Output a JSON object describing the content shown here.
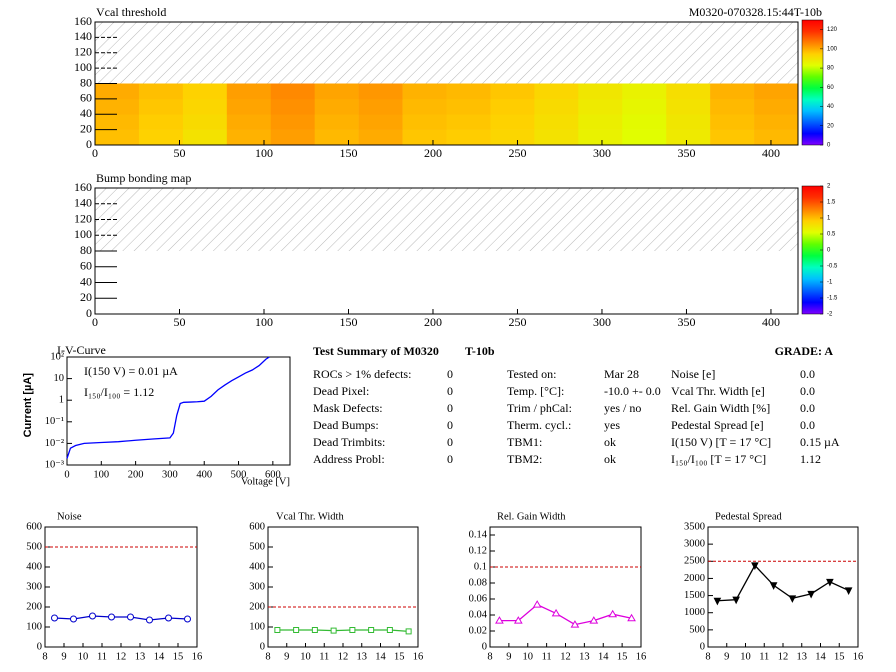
{
  "chart_data": [
    {
      "type": "heatmap",
      "title": "Vcal threshold",
      "subtitle": "M0320-070328.15:44T-10b",
      "x_bins": [
        0,
        26,
        52,
        78,
        104,
        130,
        156,
        182,
        208,
        234,
        260,
        286,
        312,
        338,
        364,
        390,
        416
      ],
      "y_bins": [
        0,
        20,
        40,
        60,
        80
      ],
      "z": [
        [
          97,
          94,
          90,
          99,
          102,
          98,
          100,
          96,
          95,
          93,
          90,
          86,
          83,
          88,
          96,
          98
        ],
        [
          98,
          95,
          92,
          100,
          103,
          99,
          101,
          97,
          96,
          94,
          91,
          87,
          84,
          89,
          97,
          99
        ],
        [
          99,
          96,
          93,
          101,
          104,
          100,
          102,
          98,
          97,
          95,
          92,
          88,
          85,
          90,
          98,
          100
        ],
        [
          100,
          97,
          94,
          102,
          105,
          101,
          103,
          99,
          98,
          96,
          93,
          89,
          86,
          91,
          99,
          101
        ]
      ],
      "xlim": [
        0,
        416
      ],
      "ylim": [
        0,
        160
      ],
      "xticks": [
        0,
        50,
        100,
        150,
        200,
        250,
        300,
        350,
        400
      ],
      "yticks": [
        0,
        20,
        40,
        60,
        80,
        100,
        120,
        140,
        160
      ],
      "zlim": [
        0,
        130
      ],
      "zticks": [
        0,
        20,
        40,
        60,
        80,
        100,
        120
      ],
      "colorscale": [
        "#8000ff",
        "#0000ff",
        "#0060ff",
        "#00c0ff",
        "#00ffc0",
        "#00ff40",
        "#60ff00",
        "#e0ff00",
        "#ffd000",
        "#ff8000",
        "#ff3000",
        "#ff0000"
      ]
    },
    {
      "type": "heatmap",
      "title": "Bump bonding map",
      "x_bins": [
        0,
        416
      ],
      "y_bins": [
        0,
        80
      ],
      "z": [
        [
          null
        ]
      ],
      "xlim": [
        0,
        416
      ],
      "ylim": [
        0,
        160
      ],
      "xticks": [
        0,
        50,
        100,
        150,
        200,
        250,
        300,
        350,
        400
      ],
      "yticks": [
        0,
        20,
        40,
        60,
        80,
        100,
        120,
        140,
        160
      ],
      "zlim": [
        -2,
        2
      ],
      "zticks": [
        -2,
        -1.5,
        -1,
        -0.5,
        0,
        0.5,
        1,
        1.5,
        2
      ],
      "colorscale": [
        "#8000ff",
        "#0000ff",
        "#0060ff",
        "#00c0ff",
        "#00ffc0",
        "#00ff40",
        "#60ff00",
        "#e0ff00",
        "#ffd000",
        "#ff8000",
        "#ff3000",
        "#ff0000"
      ]
    },
    {
      "type": "line",
      "title": "I-V-Curve",
      "x_label": "Voltage [V]",
      "y_label": "Current [µA]",
      "log_y": true,
      "x": [
        0,
        10,
        25,
        50,
        100,
        150,
        200,
        250,
        300,
        310,
        320,
        330,
        340,
        360,
        380,
        400,
        420,
        440,
        460,
        480,
        500,
        520,
        540,
        560,
        580,
        590
      ],
      "series": [
        {
          "color": "#0000ff",
          "values": [
            0.002,
            0.006,
            0.008,
            0.01,
            0.011,
            0.012,
            0.014,
            0.016,
            0.018,
            0.03,
            0.2,
            0.7,
            0.8,
            0.82,
            0.85,
            0.9,
            1.5,
            3,
            5,
            8,
            12,
            18,
            25,
            40,
            80,
            100
          ]
        }
      ],
      "xlim": [
        0,
        650
      ],
      "ylim": [
        0.001,
        100
      ],
      "xticks": [
        0,
        100,
        200,
        300,
        400,
        500,
        600
      ],
      "yticks": [
        {
          "value": 0.001,
          "label": "10⁻³"
        },
        {
          "value": 0.01,
          "label": "10⁻²"
        },
        {
          "value": 0.1,
          "label": "10⁻¹"
        },
        1,
        {
          "value": 10,
          "label": "10"
        },
        {
          "value": 100,
          "label": "10²"
        }
      ],
      "annotations": [
        "I(150 V) = 0.01 µA",
        "I₁₅₀/I₁₀₀ =  1.12"
      ]
    },
    {
      "type": "line",
      "title": "Noise",
      "marker": "circle",
      "x": [
        8.5,
        9.5,
        10.5,
        11.5,
        12.5,
        13.5,
        14.5,
        15.5
      ],
      "series": [
        {
          "color": "#0000cc",
          "values": [
            145,
            140,
            155,
            150,
            150,
            135,
            145,
            140
          ],
          "errors": [
            12,
            12,
            14,
            14,
            16,
            10,
            12,
            12
          ]
        }
      ],
      "xlim": [
        8,
        16
      ],
      "ylim": [
        0,
        600
      ],
      "xticks": [
        8,
        9,
        10,
        11,
        12,
        13,
        14,
        15,
        16
      ],
      "yticks": [
        0,
        100,
        200,
        300,
        400,
        500,
        600
      ],
      "limit": 500,
      "limit_color": "#cc0000"
    },
    {
      "type": "line",
      "title": "Vcal Thr. Width",
      "marker": "square",
      "x": [
        8.5,
        9.5,
        10.5,
        11.5,
        12.5,
        13.5,
        14.5,
        15.5
      ],
      "series": [
        {
          "color": "#33bb33",
          "values": [
            85,
            85,
            85,
            82,
            85,
            85,
            85,
            78
          ]
        }
      ],
      "xlim": [
        8,
        16
      ],
      "ylim": [
        0,
        600
      ],
      "xticks": [
        8,
        9,
        10,
        11,
        12,
        13,
        14,
        15,
        16
      ],
      "yticks": [
        0,
        100,
        200,
        300,
        400,
        500,
        600
      ],
      "limit": 200,
      "limit_color": "#cc0000"
    },
    {
      "type": "line",
      "title": "Rel. Gain Width",
      "marker": "triangle",
      "x": [
        8.5,
        9.5,
        10.5,
        11.5,
        12.5,
        13.5,
        14.5,
        15.5
      ],
      "series": [
        {
          "color": "#dd00dd",
          "values": [
            0.033,
            0.033,
            0.053,
            0.042,
            0.028,
            0.033,
            0.041,
            0.036
          ]
        }
      ],
      "xlim": [
        8,
        16
      ],
      "ylim": [
        0,
        0.15
      ],
      "xticks": [
        8,
        9,
        10,
        11,
        12,
        13,
        14,
        15,
        16
      ],
      "yticks": [
        0,
        0.02,
        0.04,
        0.06,
        0.08,
        0.1,
        0.12,
        0.14
      ],
      "limit": 0.1,
      "limit_color": "#cc0000"
    },
    {
      "type": "line",
      "title": "Pedestal Spread",
      "marker": "triangle-down",
      "x": [
        8.5,
        9.5,
        10.5,
        11.5,
        12.5,
        13.5,
        14.5,
        15.5
      ],
      "series": [
        {
          "color": "#000000",
          "values": [
            1350,
            1380,
            2380,
            1800,
            1420,
            1550,
            1900,
            1650
          ]
        }
      ],
      "xlim": [
        8,
        16
      ],
      "ylim": [
        0,
        3500
      ],
      "xticks": [
        8,
        9,
        10,
        11,
        12,
        13,
        14,
        15,
        16
      ],
      "yticks": [
        0,
        500,
        1000,
        1500,
        2000,
        2500,
        3000,
        3500
      ],
      "limit": 2500,
      "limit_color": "#cc0000"
    }
  ],
  "summary": {
    "title": "Test Summary of M0320",
    "tag": "T-10b",
    "grade": "GRADE:  A",
    "left": [
      [
        "ROCs > 1% defects:",
        0
      ],
      [
        "Dead Pixel:",
        0
      ],
      [
        "Mask Defects:",
        0
      ],
      [
        "Dead Bumps:",
        0
      ],
      [
        "Dead Trimbits:",
        0
      ],
      [
        "Address Probl:",
        0
      ]
    ],
    "middle": [
      [
        "Tested on:",
        "Mar 28"
      ],
      [
        "Temp. [°C]:",
        "-10.0 +- 0.0"
      ],
      [
        "Trim / phCal:",
        "yes / no"
      ],
      [
        "Therm. cycl.:",
        "yes"
      ],
      [
        "TBM1:",
        "ok"
      ],
      [
        "TBM2:",
        "ok"
      ]
    ],
    "right": [
      [
        "Noise [e]",
        "0.0"
      ],
      [
        "Vcal Thr. Width [e]",
        "0.0"
      ],
      [
        "Rel. Gain Width [%]",
        "0.0"
      ],
      [
        "Pedestal Spread [e]",
        "0.0"
      ],
      [
        "I(150 V) [T = 17 °C]",
        "0.15 µA"
      ],
      [
        "I₁₅₀/I₁₀₀  [T = 17 °C]",
        "1.12"
      ]
    ]
  }
}
